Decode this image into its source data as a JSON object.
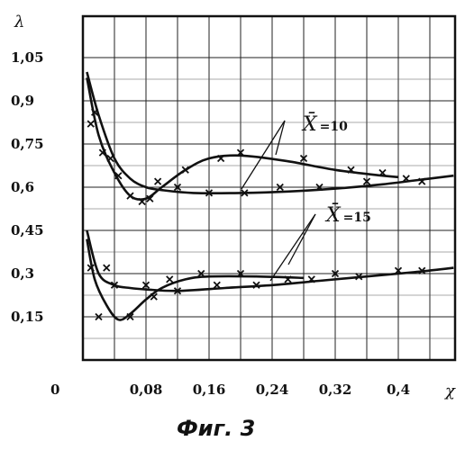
{
  "chart_data": {
    "type": "line",
    "xlabel": "χ",
    "ylabel": "λ",
    "origin_label": "0",
    "x_ticks": [
      "0,08",
      "0,16",
      "0,24",
      "0,32",
      "0,4"
    ],
    "y_ticks": [
      "1,05",
      "0,9",
      "0,75",
      "0,6",
      "0,45",
      "0,3",
      "0,15"
    ],
    "xlim": [
      0,
      0.48
    ],
    "ylim": [
      0,
      1.2
    ],
    "grid": true,
    "annotations": [
      {
        "name": "X̄",
        "value": "=10"
      },
      {
        "name": "X̄",
        "value": "=15"
      }
    ],
    "caption": "Фиг. 3",
    "series": [
      {
        "values": [
          [
            0.005,
            0.98
          ],
          [
            0.02,
            0.78
          ],
          [
            0.04,
            0.65
          ],
          [
            0.06,
            0.57
          ],
          [
            0.08,
            0.56
          ],
          [
            0.1,
            0.6
          ],
          [
            0.13,
            0.66
          ],
          [
            0.16,
            0.7
          ],
          [
            0.2,
            0.71
          ],
          [
            0.26,
            0.69
          ],
          [
            0.32,
            0.66
          ],
          [
            0.38,
            0.64
          ],
          [
            0.4,
            0.635
          ]
        ]
      },
      {
        "values": [
          [
            0.005,
            1.0
          ],
          [
            0.02,
            0.85
          ],
          [
            0.04,
            0.7
          ],
          [
            0.06,
            0.63
          ],
          [
            0.08,
            0.6
          ],
          [
            0.1,
            0.59
          ],
          [
            0.14,
            0.58
          ],
          [
            0.2,
            0.58
          ],
          [
            0.26,
            0.585
          ],
          [
            0.32,
            0.595
          ],
          [
            0.38,
            0.61
          ],
          [
            0.44,
            0.63
          ],
          [
            0.47,
            0.64
          ]
        ]
      },
      {
        "values": [
          [
            0.005,
            0.42
          ],
          [
            0.015,
            0.28
          ],
          [
            0.03,
            0.19
          ],
          [
            0.045,
            0.14
          ],
          [
            0.06,
            0.16
          ],
          [
            0.08,
            0.21
          ],
          [
            0.1,
            0.25
          ],
          [
            0.13,
            0.28
          ],
          [
            0.16,
            0.29
          ],
          [
            0.22,
            0.29
          ],
          [
            0.28,
            0.285
          ]
        ]
      },
      {
        "values": [
          [
            0.005,
            0.45
          ],
          [
            0.02,
            0.3
          ],
          [
            0.04,
            0.26
          ],
          [
            0.06,
            0.25
          ],
          [
            0.08,
            0.245
          ],
          [
            0.12,
            0.24
          ],
          [
            0.18,
            0.25
          ],
          [
            0.24,
            0.26
          ],
          [
            0.3,
            0.275
          ],
          [
            0.36,
            0.29
          ],
          [
            0.42,
            0.305
          ],
          [
            0.47,
            0.32
          ]
        ]
      }
    ],
    "markers": [
      [
        0.01,
        0.82
      ],
      [
        0.015,
        0.86
      ],
      [
        0.025,
        0.72
      ],
      [
        0.035,
        0.7
      ],
      [
        0.045,
        0.64
      ],
      [
        0.06,
        0.57
      ],
      [
        0.075,
        0.55
      ],
      [
        0.085,
        0.56
      ],
      [
        0.095,
        0.62
      ],
      [
        0.12,
        0.6
      ],
      [
        0.13,
        0.66
      ],
      [
        0.16,
        0.58
      ],
      [
        0.175,
        0.7
      ],
      [
        0.2,
        0.72
      ],
      [
        0.205,
        0.58
      ],
      [
        0.25,
        0.6
      ],
      [
        0.28,
        0.7
      ],
      [
        0.3,
        0.6
      ],
      [
        0.34,
        0.66
      ],
      [
        0.36,
        0.62
      ],
      [
        0.38,
        0.65
      ],
      [
        0.41,
        0.63
      ],
      [
        0.43,
        0.62
      ],
      [
        0.01,
        0.32
      ],
      [
        0.02,
        0.15
      ],
      [
        0.03,
        0.32
      ],
      [
        0.04,
        0.26
      ],
      [
        0.06,
        0.15
      ],
      [
        0.08,
        0.26
      ],
      [
        0.09,
        0.22
      ],
      [
        0.11,
        0.28
      ],
      [
        0.12,
        0.24
      ],
      [
        0.15,
        0.3
      ],
      [
        0.17,
        0.26
      ],
      [
        0.2,
        0.3
      ],
      [
        0.22,
        0.26
      ],
      [
        0.26,
        0.28
      ],
      [
        0.29,
        0.28
      ],
      [
        0.32,
        0.3
      ],
      [
        0.35,
        0.29
      ],
      [
        0.4,
        0.31
      ],
      [
        0.43,
        0.31
      ]
    ]
  }
}
